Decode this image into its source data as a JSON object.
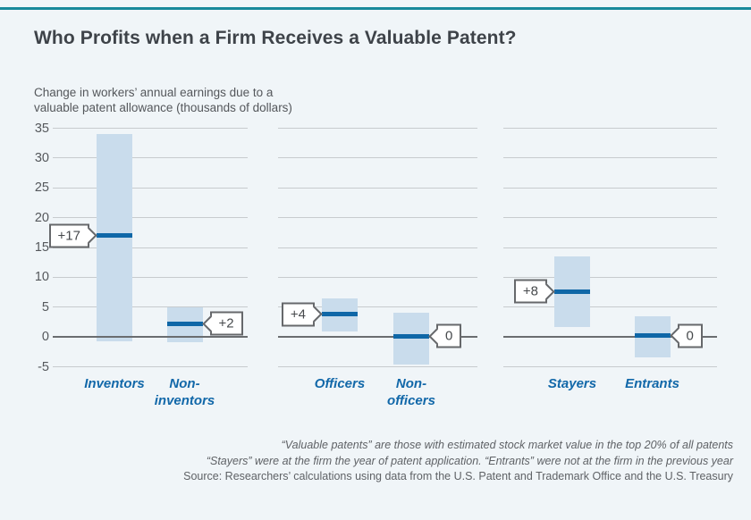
{
  "meta": {
    "background_color": "#f0f5f8",
    "accent_color": "#18899b"
  },
  "header": {
    "title": "Who Profits when a Firm Receives a Valuable Patent?",
    "subtitle": [
      "Change in workers’ annual earnings due to a",
      "valuable patent allowance (thousands of dollars)"
    ]
  },
  "chart_data": {
    "type": "range-bar",
    "title": "Who Profits when a Firm Receives a Valuable Patent?",
    "ylabel": "Change in workers’ annual earnings due to a valuable patent allowance (thousands of dollars)",
    "ylim": [
      -5,
      35
    ],
    "yticks": [
      35,
      30,
      25,
      20,
      15,
      10,
      5,
      0,
      -5
    ],
    "grid": true,
    "zero_baseline": true,
    "colors": {
      "band": "#c9dcec",
      "estimate": "#0f67a7",
      "grid": "#c7cbce",
      "zero_line": "#6a6d70",
      "category_label": "#1268a9",
      "callout_border": "#66686b",
      "callout_text": "#46494c"
    },
    "panels": [
      {
        "bars": [
          {
            "category": [
              "Inventors"
            ],
            "estimate": 17,
            "estimate_label": "+17",
            "ci": [
              -0.7,
              34
            ],
            "callout_side": "left"
          },
          {
            "category": [
              "Non-",
              "inventors"
            ],
            "estimate": 2.2,
            "estimate_label": "+2",
            "ci": [
              -0.9,
              4.9
            ],
            "callout_side": "right"
          }
        ]
      },
      {
        "bars": [
          {
            "category": [
              "Officers"
            ],
            "estimate": 3.8,
            "estimate_label": "+4",
            "ci": [
              0.9,
              6.4
            ],
            "callout_side": "left"
          },
          {
            "category": [
              "Non-",
              "officers"
            ],
            "estimate": 0.1,
            "estimate_label": "0",
            "ci": [
              -4.6,
              4.0
            ],
            "callout_side": "right"
          }
        ]
      },
      {
        "bars": [
          {
            "category": [
              "Stayers"
            ],
            "estimate": 7.6,
            "estimate_label": "+8",
            "ci": [
              1.6,
              13.5
            ],
            "callout_side": "left"
          },
          {
            "category": [
              "Entrants"
            ],
            "estimate": 0.2,
            "estimate_label": "0",
            "ci": [
              -3.5,
              3.4
            ],
            "callout_side": "right"
          }
        ]
      }
    ]
  },
  "footnotes": [
    "“Valuable patents” are those with estimated stock market value in the top 20% of all patents",
    "“Stayers” were at the firm the year of patent application. “Entrants” were not at the firm in the previous year",
    "Source: Researchers’ calculations using data from the U.S. Patent and Trademark Office and the U.S. Treasury"
  ]
}
